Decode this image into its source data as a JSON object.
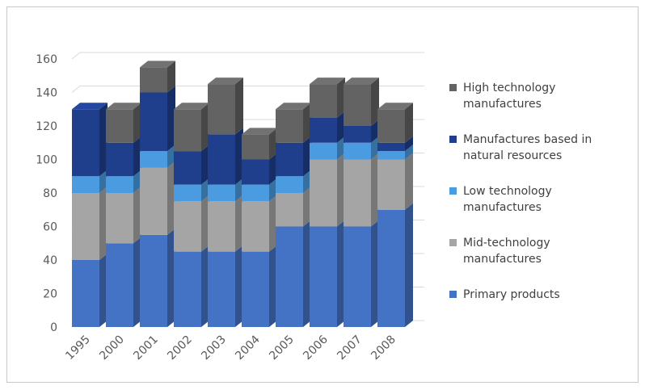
{
  "chart_data": {
    "type": "bar",
    "stacked": true,
    "three_d": true,
    "categories": [
      "1995",
      "2000",
      "2001",
      "2002",
      "2003",
      "2004",
      "2005",
      "2006",
      "2007",
      "2008"
    ],
    "series": [
      {
        "name": "Primary products",
        "color": "#4472C4",
        "values": [
          40,
          50,
          55,
          45,
          45,
          45,
          60,
          60,
          60,
          70
        ]
      },
      {
        "name": "Mid-technology manufactures",
        "color": "#A5A5A5",
        "values": [
          40,
          30,
          40,
          30,
          30,
          30,
          20,
          40,
          40,
          30
        ]
      },
      {
        "name": "Low technology manufactures",
        "color": "#4A9BE0",
        "values": [
          10,
          10,
          10,
          10,
          10,
          10,
          10,
          10,
          10,
          5
        ]
      },
      {
        "name": "Manufactures based in natural resources",
        "color": "#1F3E8C",
        "values": [
          40,
          20,
          35,
          20,
          30,
          15,
          20,
          15,
          10,
          5
        ]
      },
      {
        "name": "High technology manufactures",
        "color": "#636363",
        "values": [
          0,
          20,
          15,
          25,
          30,
          15,
          20,
          20,
          25,
          20
        ]
      }
    ],
    "legend_order": [
      {
        "name": "High technology manufactures",
        "lines": [
          "High technology",
          "manufactures"
        ]
      },
      {
        "name": "Manufactures based in natural resources",
        "lines": [
          "Manufactures based in",
          "natural resources"
        ]
      },
      {
        "name": "Low technology manufactures",
        "lines": [
          "Low technology",
          "manufactures"
        ]
      },
      {
        "name": "Mid-technology manufactures",
        "lines": [
          "Mid-technology",
          "manufactures"
        ]
      },
      {
        "name": "Primary products",
        "lines": [
          "Primary products"
        ]
      }
    ],
    "y_ticks": [
      "0",
      "20",
      "40",
      "60",
      "80",
      "100",
      "120",
      "140",
      "160"
    ],
    "ylim": [
      0,
      160
    ],
    "grid": true,
    "legend_position": "right",
    "title": "",
    "xlabel": "",
    "ylabel": ""
  }
}
